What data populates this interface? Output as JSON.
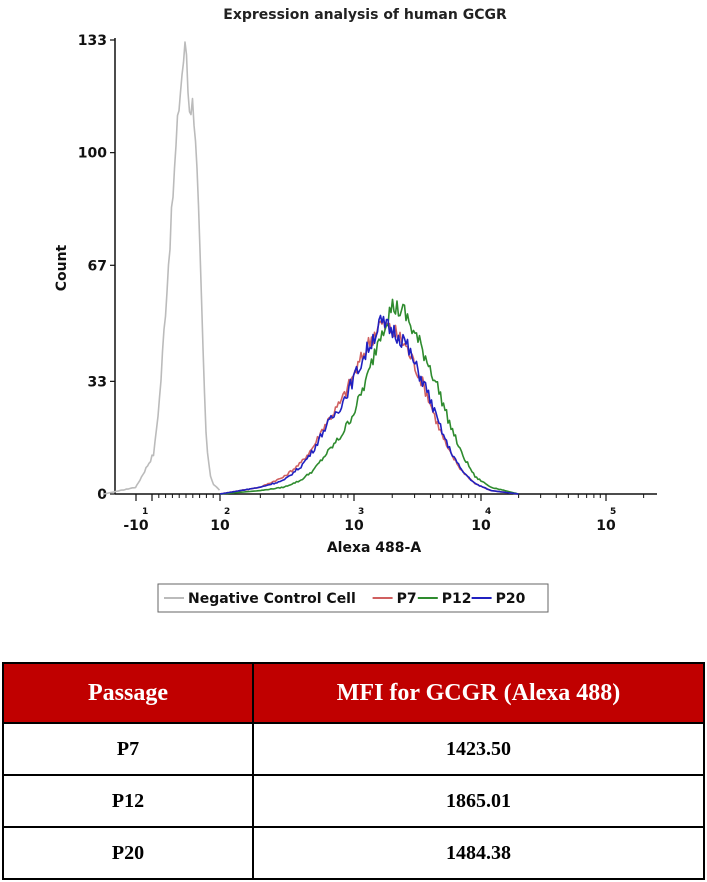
{
  "chart_data": {
    "type": "line",
    "title": "Expression analysis of human GCGR",
    "xlabel": "Alexa 488-A",
    "ylabel": "Count",
    "x_scale": "log",
    "x_ticks": [
      {
        "base": "-10",
        "exp": "1",
        "x": -10
      },
      {
        "base": "10",
        "exp": "2",
        "x": 100
      },
      {
        "base": "10",
        "exp": "3",
        "x": 1000
      },
      {
        "base": "10",
        "exp": "4",
        "x": 10000
      },
      {
        "base": "10",
        "exp": "5",
        "x": 100000
      }
    ],
    "y_ticks": [
      0,
      33,
      67,
      100,
      133
    ],
    "ylim": [
      0,
      133
    ],
    "legend_position": "bottom",
    "series": [
      {
        "name": "Negative Control Cell",
        "color": "#bbbbbb",
        "x": [
          -30,
          -10,
          3,
          12,
          20,
          30,
          38,
          45,
          50,
          53,
          56,
          60,
          64,
          68,
          72,
          76,
          80,
          85,
          90,
          95,
          100
        ],
        "y": [
          0,
          2,
          12,
          30,
          55,
          85,
          110,
          125,
          133,
          118,
          112,
          115,
          105,
          85,
          60,
          35,
          15,
          6,
          3,
          2,
          1
        ]
      },
      {
        "name": "P7",
        "color": "#d06060",
        "x": [
          100,
          200,
          300,
          400,
          500,
          600,
          800,
          1000,
          1300,
          1600,
          2000,
          2500,
          3000,
          3700,
          4500,
          5500,
          7000,
          9000,
          12000,
          20000
        ],
        "y": [
          0,
          2,
          5,
          9,
          14,
          20,
          27,
          35,
          44,
          50,
          48,
          44,
          38,
          30,
          21,
          13,
          7,
          3,
          1,
          0
        ]
      },
      {
        "name": "P12",
        "color": "#2e8b2e",
        "x": [
          100,
          200,
          300,
          400,
          500,
          600,
          800,
          1000,
          1300,
          1600,
          2000,
          2500,
          3000,
          3700,
          4500,
          5500,
          7000,
          9000,
          12000,
          20000
        ],
        "y": [
          0,
          1,
          2,
          4,
          7,
          11,
          17,
          24,
          35,
          47,
          55,
          53,
          47,
          40,
          32,
          22,
          12,
          5,
          2,
          0
        ]
      },
      {
        "name": "P20",
        "color": "#2020c0",
        "x": [
          100,
          200,
          300,
          400,
          500,
          600,
          800,
          1000,
          1300,
          1600,
          2000,
          2500,
          3000,
          3700,
          4500,
          5500,
          7000,
          9000,
          12000,
          20000
        ],
        "y": [
          0,
          2,
          4,
          8,
          13,
          19,
          26,
          34,
          43,
          50,
          48,
          45,
          38,
          31,
          22,
          14,
          7,
          3,
          1,
          0
        ]
      }
    ]
  },
  "table": {
    "headers": [
      "Passage",
      "MFI for GCGR (Alexa 488)"
    ],
    "rows": [
      [
        "P7",
        "1423.50"
      ],
      [
        "P12",
        "1865.01"
      ],
      [
        "P20",
        "1484.38"
      ]
    ],
    "header_color": "#c00000"
  }
}
